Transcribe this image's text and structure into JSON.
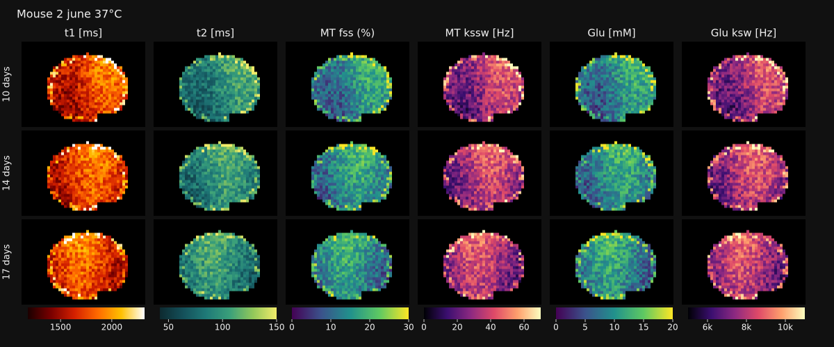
{
  "title": "Mouse 2 june 37°C",
  "row_labels": [
    "10 days",
    "14 days",
    "17 days"
  ],
  "chart_data": [
    {
      "type": "heatmap",
      "title": "t1 [ms]",
      "clim": [
        1180,
        2320
      ],
      "ticks": [
        1500,
        2000
      ],
      "colorscale": [
        "#1a0000",
        "#7a0000",
        "#d42000",
        "#ff6a00",
        "#ffc000",
        "#ffffff"
      ]
    },
    {
      "type": "heatmap",
      "title": "t2 [ms]",
      "clim": [
        42,
        150
      ],
      "ticks": [
        50,
        100,
        150
      ],
      "colorscale": [
        "#0d2a30",
        "#14505a",
        "#1f7a78",
        "#3aa07a",
        "#93c85a",
        "#f2ec6a"
      ]
    },
    {
      "type": "heatmap",
      "title": "MT fss (%)",
      "clim": [
        0,
        30
      ],
      "ticks": [
        0,
        10,
        20,
        30
      ],
      "colorscale": [
        "#440154",
        "#3b528b",
        "#21918c",
        "#5ec962",
        "#fde725"
      ]
    },
    {
      "type": "heatmap",
      "title": "MT kssw [Hz]",
      "clim": [
        0,
        70
      ],
      "ticks": [
        0,
        20,
        40,
        60
      ],
      "colorscale": [
        "#000004",
        "#3b0f70",
        "#8c2981",
        "#de4968",
        "#fe9f6d",
        "#fcfdbf"
      ]
    },
    {
      "type": "heatmap",
      "title": "Glu [mM]",
      "clim": [
        0,
        20
      ],
      "ticks": [
        0,
        5,
        10,
        15,
        20
      ],
      "colorscale": [
        "#440154",
        "#3b528b",
        "#21918c",
        "#5ec962",
        "#fde725"
      ]
    },
    {
      "type": "heatmap",
      "title": "Glu ksw [Hz]",
      "clim": [
        5000,
        11000
      ],
      "ticks": [
        {
          "value": 6000,
          "label": "6k"
        },
        {
          "value": 8000,
          "label": "8k"
        },
        {
          "value": 10000,
          "label": "10k"
        }
      ],
      "colorscale": [
        "#000004",
        "#3b0f70",
        "#8c2981",
        "#de4968",
        "#fe9f6d",
        "#fcfdbf"
      ]
    }
  ]
}
